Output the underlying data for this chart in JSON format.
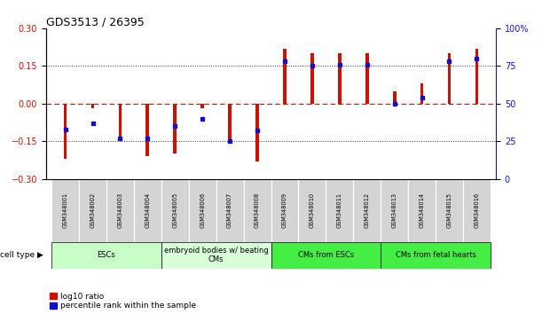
{
  "title": "GDS3513 / 26395",
  "samples": [
    "GSM348001",
    "GSM348002",
    "GSM348003",
    "GSM348004",
    "GSM348005",
    "GSM348006",
    "GSM348007",
    "GSM348008",
    "GSM348009",
    "GSM348010",
    "GSM348011",
    "GSM348012",
    "GSM348013",
    "GSM348014",
    "GSM348015",
    "GSM348016"
  ],
  "log10_ratio": [
    -0.22,
    -0.02,
    -0.13,
    -0.21,
    -0.2,
    -0.02,
    -0.16,
    -0.23,
    0.22,
    0.2,
    0.2,
    0.2,
    0.05,
    0.08,
    0.2,
    0.22
  ],
  "percentile_rank": [
    33,
    37,
    27,
    27,
    35,
    40,
    25,
    32,
    78,
    75,
    76,
    76,
    50,
    54,
    78,
    80
  ],
  "groups": [
    {
      "label": "ESCs",
      "start": 0,
      "end": 3,
      "color": "#c8ffc8"
    },
    {
      "label": "embryoid bodies w/ beating\nCMs",
      "start": 4,
      "end": 7,
      "color": "#d8ffd8"
    },
    {
      "label": "CMs from ESCs",
      "start": 8,
      "end": 11,
      "color": "#44ee44"
    },
    {
      "label": "CMs from fetal hearts",
      "start": 12,
      "end": 15,
      "color": "#44ee44"
    }
  ],
  "ylim_left": [
    -0.3,
    0.3
  ],
  "ylim_right": [
    0,
    100
  ],
  "yticks_left": [
    -0.3,
    -0.15,
    0,
    0.15,
    0.3
  ],
  "yticks_right": [
    0,
    25,
    50,
    75,
    100
  ],
  "bar_color": "#cc1100",
  "dot_color": "#1111cc",
  "zero_line_color": "#cc1100",
  "dotted_line_color": "#333333",
  "background_color": "#ffffff",
  "bar_width": 0.12
}
